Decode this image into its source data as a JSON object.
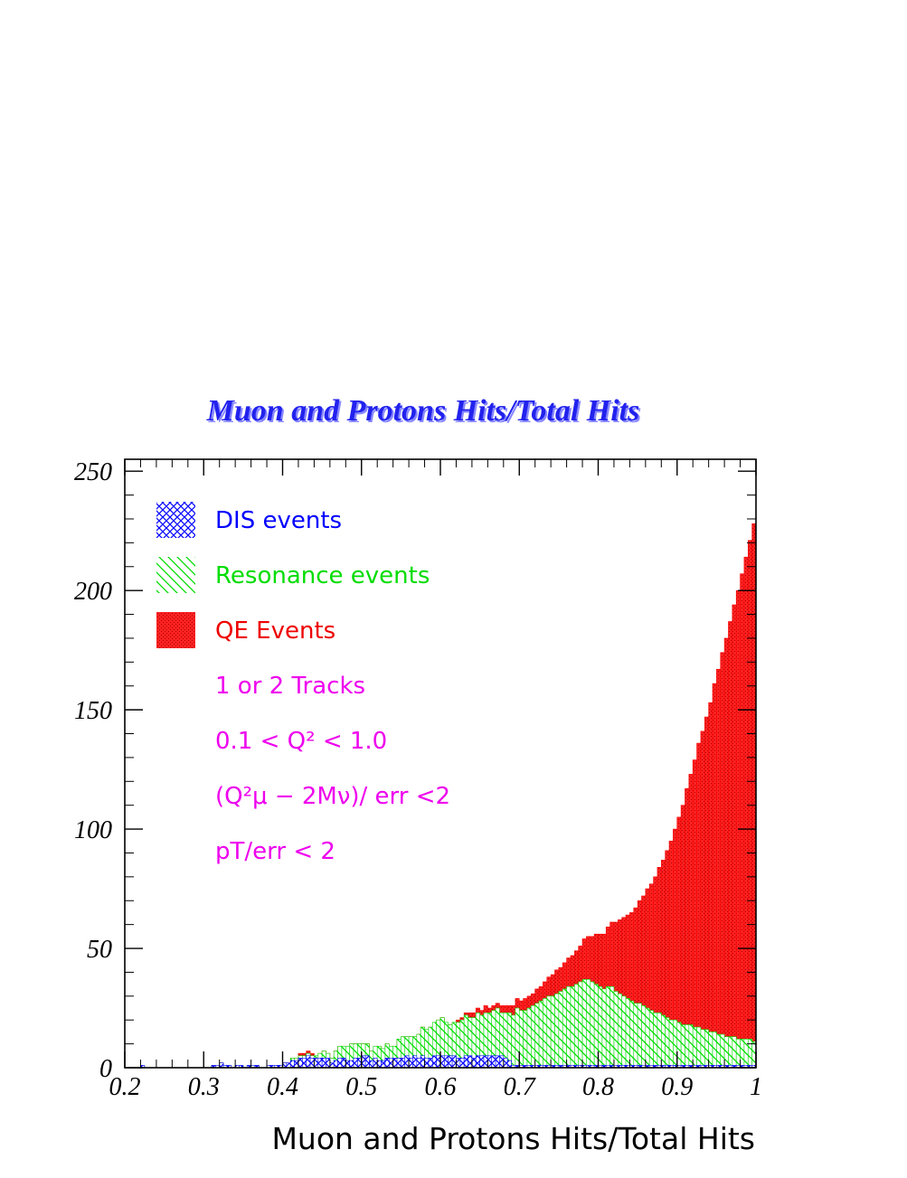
{
  "chart_data": {
    "type": "bar",
    "title": "Muon and Protons Hits/Total Hits",
    "xlabel": "Muon and Protons Hits/Total Hits",
    "ylabel": "",
    "xlim": [
      0.2,
      1.0
    ],
    "ylim": [
      0,
      255
    ],
    "bin_width": 0.005,
    "stacked": true,
    "x_ticks": [
      "0.2",
      "0.3",
      "0.4",
      "0.5",
      "0.6",
      "0.7",
      "0.8",
      "0.9",
      "1"
    ],
    "x_tick_values": [
      0.2,
      0.3,
      0.4,
      0.5,
      0.6,
      0.7,
      0.8,
      0.9,
      1.0
    ],
    "y_ticks": [
      "0",
      "50",
      "100",
      "150",
      "200",
      "250"
    ],
    "y_tick_values": [
      0,
      50,
      100,
      150,
      200,
      250
    ],
    "legend_position": "top-left",
    "series": [
      {
        "name": "DIS events",
        "color": "#0000ff",
        "pattern": "crosshatch",
        "x_start": 0.2,
        "values": [
          0,
          0,
          0,
          0,
          1,
          0,
          0,
          0,
          0,
          0,
          0,
          0,
          0,
          0,
          0,
          0,
          0,
          0,
          0,
          0,
          0,
          0,
          1,
          1,
          2,
          1,
          1,
          0,
          1,
          1,
          0,
          1,
          1,
          1,
          0,
          0,
          1,
          1,
          1,
          1,
          2,
          2,
          3,
          3,
          4,
          4,
          5,
          4,
          4,
          4,
          4,
          4,
          2,
          3,
          4,
          4,
          3,
          3,
          4,
          4,
          5,
          5,
          3,
          4,
          3,
          3,
          4,
          4,
          4,
          4,
          4,
          5,
          4,
          5,
          4,
          5,
          4,
          4,
          5,
          5,
          5,
          5,
          5,
          5,
          4,
          4,
          5,
          5,
          4,
          5,
          5,
          5,
          5,
          5,
          5,
          5,
          4,
          3,
          1,
          1,
          1,
          1,
          1,
          1,
          1,
          1,
          1,
          1,
          1,
          1,
          1,
          1,
          1,
          1,
          1,
          1,
          1,
          1,
          1,
          1,
          1,
          1,
          1,
          1,
          1,
          1,
          1,
          1,
          1,
          1,
          1,
          1,
          1,
          1,
          1,
          1,
          1,
          1,
          1,
          1,
          1,
          1,
          1,
          1,
          1,
          1,
          1,
          1,
          1,
          1,
          1,
          1,
          1,
          1,
          1,
          1,
          1,
          1,
          1,
          1
        ]
      },
      {
        "name": "Resonance events",
        "color": "#00dd00",
        "pattern": "diagonal",
        "x_start": 0.2,
        "values": [
          0,
          0,
          0,
          0,
          0,
          0,
          0,
          0,
          0,
          0,
          0,
          0,
          0,
          0,
          0,
          0,
          0,
          0,
          0,
          0,
          0,
          0,
          0,
          0,
          0,
          0,
          0,
          0,
          0,
          0,
          0,
          0,
          0,
          0,
          0,
          0,
          0,
          0,
          0,
          0,
          0,
          0,
          1,
          1,
          1,
          1,
          1,
          1,
          1,
          2,
          3,
          2,
          2,
          4,
          5,
          5,
          6,
          7,
          6,
          6,
          5,
          5,
          4,
          5,
          6,
          5,
          6,
          5,
          5,
          8,
          9,
          8,
          9,
          8,
          10,
          12,
          12,
          13,
          14,
          15,
          16,
          14,
          13,
          14,
          15,
          16,
          17,
          16,
          17,
          18,
          17,
          18,
          18,
          19,
          20,
          18,
          19,
          20,
          21,
          24,
          23,
          23,
          24,
          25,
          26,
          27,
          28,
          29,
          29,
          30,
          31,
          32,
          33,
          33,
          34,
          35,
          36,
          36,
          35,
          34,
          33,
          32,
          33,
          33,
          31,
          30,
          29,
          28,
          27,
          26,
          26,
          25,
          24,
          23,
          22,
          22,
          21,
          20,
          19,
          19,
          18,
          17,
          17,
          17,
          16,
          16,
          15,
          15,
          14,
          14,
          13,
          13,
          12,
          12,
          12,
          11,
          11,
          11,
          11,
          10
        ]
      },
      {
        "name": "QE Events",
        "color": "#ff0000",
        "pattern": "dense",
        "x_start": 0.2,
        "values": [
          0,
          0,
          0,
          0,
          0,
          0,
          0,
          0,
          0,
          0,
          0,
          0,
          0,
          0,
          0,
          0,
          0,
          0,
          0,
          0,
          0,
          0,
          0,
          0,
          0,
          0,
          0,
          0,
          0,
          0,
          0,
          0,
          0,
          0,
          0,
          0,
          0,
          0,
          0,
          0,
          0,
          0,
          0,
          0,
          1,
          1,
          1,
          1,
          0,
          0,
          0,
          0,
          0,
          0,
          0,
          0,
          0,
          0,
          0,
          0,
          0,
          0,
          0,
          0,
          0,
          0,
          0,
          0,
          0,
          0,
          0,
          0,
          0,
          0,
          0,
          0,
          0,
          0,
          0,
          0,
          0,
          0,
          0,
          0,
          1,
          1,
          1,
          2,
          2,
          2,
          2,
          3,
          2,
          2,
          2,
          3,
          3,
          3,
          4,
          4,
          4,
          5,
          5,
          5,
          6,
          6,
          7,
          8,
          9,
          10,
          10,
          11,
          12,
          13,
          14,
          15,
          17,
          18,
          19,
          21,
          22,
          23,
          25,
          27,
          29,
          31,
          33,
          35,
          37,
          40,
          43,
          46,
          50,
          53,
          57,
          61,
          65,
          70,
          75,
          80,
          86,
          92,
          99,
          105,
          112,
          119,
          125,
          131,
          138,
          146,
          153,
          160,
          167,
          174,
          181,
          188,
          195,
          202,
          209,
          217
        ]
      }
    ],
    "annotations": [
      "1 or 2 Tracks",
      "0.1 < Q² < 1.0",
      "(Q²μ − 2Mν)/ err <2",
      "pT/err < 2"
    ]
  }
}
